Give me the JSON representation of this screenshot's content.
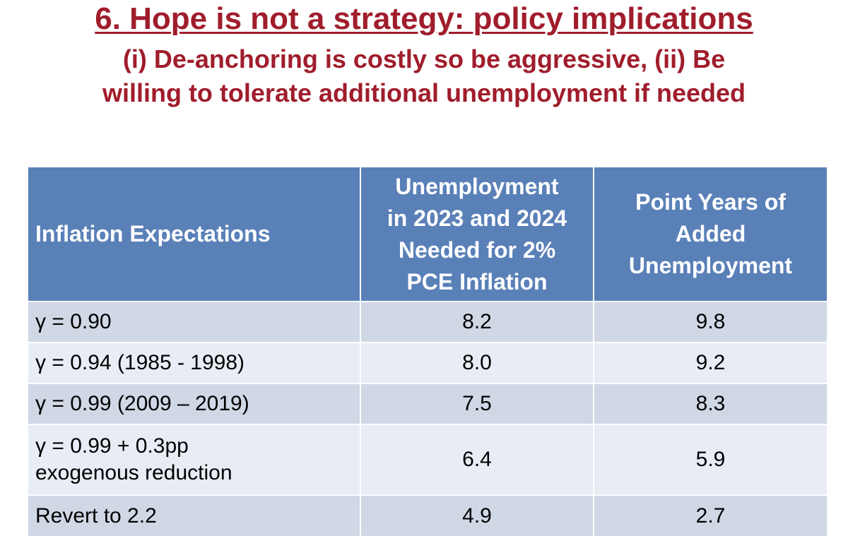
{
  "slide": {
    "title": "6. Hope is not a strategy: policy implications",
    "subtitle_line1": "(i) De-anchoring is costly so be aggressive, (ii) Be",
    "subtitle_line2": "willing to tolerate additional unemployment if needed",
    "accent_color": "#a01d2c"
  },
  "table": {
    "header_color": "#5a80b8",
    "headers": {
      "col1": "Inflation Expectations",
      "col2": [
        "Unemployment",
        "in 2023 and 2024",
        "Needed for 2%",
        "PCE Inflation"
      ],
      "col3": [
        "Point Years of",
        "Added",
        "Unemployment"
      ]
    },
    "rows": [
      {
        "expectation": [
          "γ = 0.90"
        ],
        "unemployment": "8.2",
        "point_years": "9.8"
      },
      {
        "expectation": [
          "γ = 0.94 (1985 - 1998)"
        ],
        "unemployment": "8.0",
        "point_years": "9.2"
      },
      {
        "expectation": [
          "γ = 0.99 (2009 – 2019)"
        ],
        "unemployment": "7.5",
        "point_years": "8.3"
      },
      {
        "expectation": [
          "γ = 0.99 + 0.3pp",
          "exogenous reduction"
        ],
        "unemployment": "6.4",
        "point_years": "5.9"
      },
      {
        "expectation": [
          "Revert to 2.2"
        ],
        "unemployment": "4.9",
        "point_years": "2.7"
      }
    ]
  }
}
